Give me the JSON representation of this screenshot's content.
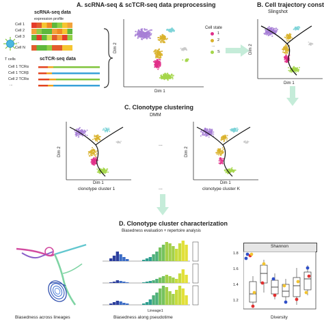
{
  "sections": {
    "a": {
      "title": "A. scRNA-seq & scTCR-seq data preprocessing",
      "scrna_title": "scRNA-seq data",
      "expression_label": "expression profile",
      "cells": [
        "Cell 1",
        "Cell 2",
        "Cell 3",
        "...",
        "Cell N"
      ],
      "sctcr_title": "scTCR-seq data",
      "tcr_rows": [
        "Cell 1 TCRα",
        "Cell 1 TCRβ",
        "Cell 2 TCRα",
        "..."
      ],
      "tcells_label": "T cells",
      "axis_x": "Dim 1",
      "axis_y": "Dim 2",
      "legend_title": "Cell state",
      "legend_items": [
        "1",
        "2",
        "...",
        "S"
      ]
    },
    "b": {
      "title": "B. Cell trajectory constru",
      "subtitle": "Slingshot",
      "axis_x": "Dim 1",
      "axis_y": "Dim 2"
    },
    "c": {
      "title": "C. Clonotype clustering",
      "subtitle": "DMM",
      "axis_x": "Dim 1",
      "axis_y": "Dim 2",
      "ellipsis": "...",
      "caption_first": "clonotype cluster 1",
      "caption_last": "clonotype cluster K",
      "below_ellipsis": "..."
    },
    "d": {
      "title": "D. Clonotype cluster characterization",
      "subtitle": "Biasedness evaluation + repertoire analysis",
      "caption_lineages": "Biasedness across lineages",
      "caption_pseudotime": "Biasedness along pseudotime",
      "lineage_axis": "Lineage1",
      "caption_diversity": "Diversity",
      "shannon_label": "Shannon",
      "y_ticks": [
        "1.8",
        "1.6",
        "1.4",
        "1.2"
      ]
    }
  },
  "colors": {
    "state_1": "#e0308a",
    "state_2": "#d9b12a",
    "state_3": "#a4d64a",
    "state_s": "#7ed4d8",
    "purple": "#a77fd6",
    "arrow": "#c5ecd9",
    "tcr_red": "#e2431e",
    "tcr_orange": "#f0a21a",
    "tcr_green": "#7fc43b",
    "tcr_blue": "#39a1d8"
  }
}
